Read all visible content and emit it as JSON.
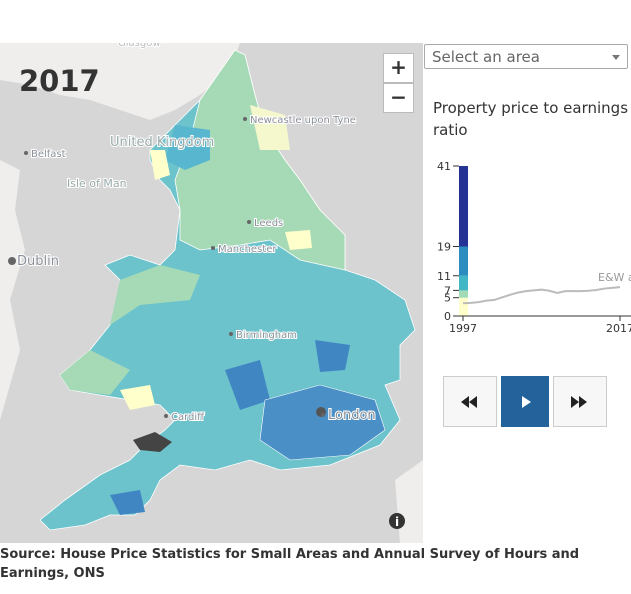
{
  "year": "2017",
  "zoom_in": "+",
  "zoom_out": "−",
  "select_placeholder": "Select an area",
  "map_labels": [
    "Glasgow",
    "Newcastle upon Tyne",
    "Belfast",
    "United Kingdom",
    "Isle of Man",
    "Leeds",
    "Dublin",
    "Manchester",
    "Birmingham",
    "Cardiff",
    "London"
  ],
  "legend": {
    "title": "Property price to earnings ratio",
    "ticks": [
      0,
      5,
      7,
      11,
      19,
      41
    ],
    "colors": [
      "#ffffcc",
      "#a1dab4",
      "#41b6c4",
      "#2c8cc0",
      "#253494"
    ]
  },
  "trend": {
    "label": "E&W a",
    "color": "#bbbbbb",
    "x": [
      1997,
      1998,
      1999,
      2000,
      2001,
      2002,
      2003,
      2004,
      2005,
      2006,
      2007,
      2008,
      2009,
      2010,
      2011,
      2012,
      2013,
      2014,
      2015,
      2016,
      2017
    ],
    "values": [
      3.5,
      3.6,
      3.8,
      4.2,
      4.4,
      5.1,
      5.8,
      6.4,
      6.8,
      7.0,
      7.2,
      6.9,
      6.3,
      6.8,
      6.8,
      6.8,
      6.9,
      7.1,
      7.5,
      7.7,
      7.9
    ],
    "xticks": [
      1997,
      2017
    ]
  },
  "source": "Source: House Price Statistics for Small Areas and Annual Survey of Hours and Earnings, ONS"
}
